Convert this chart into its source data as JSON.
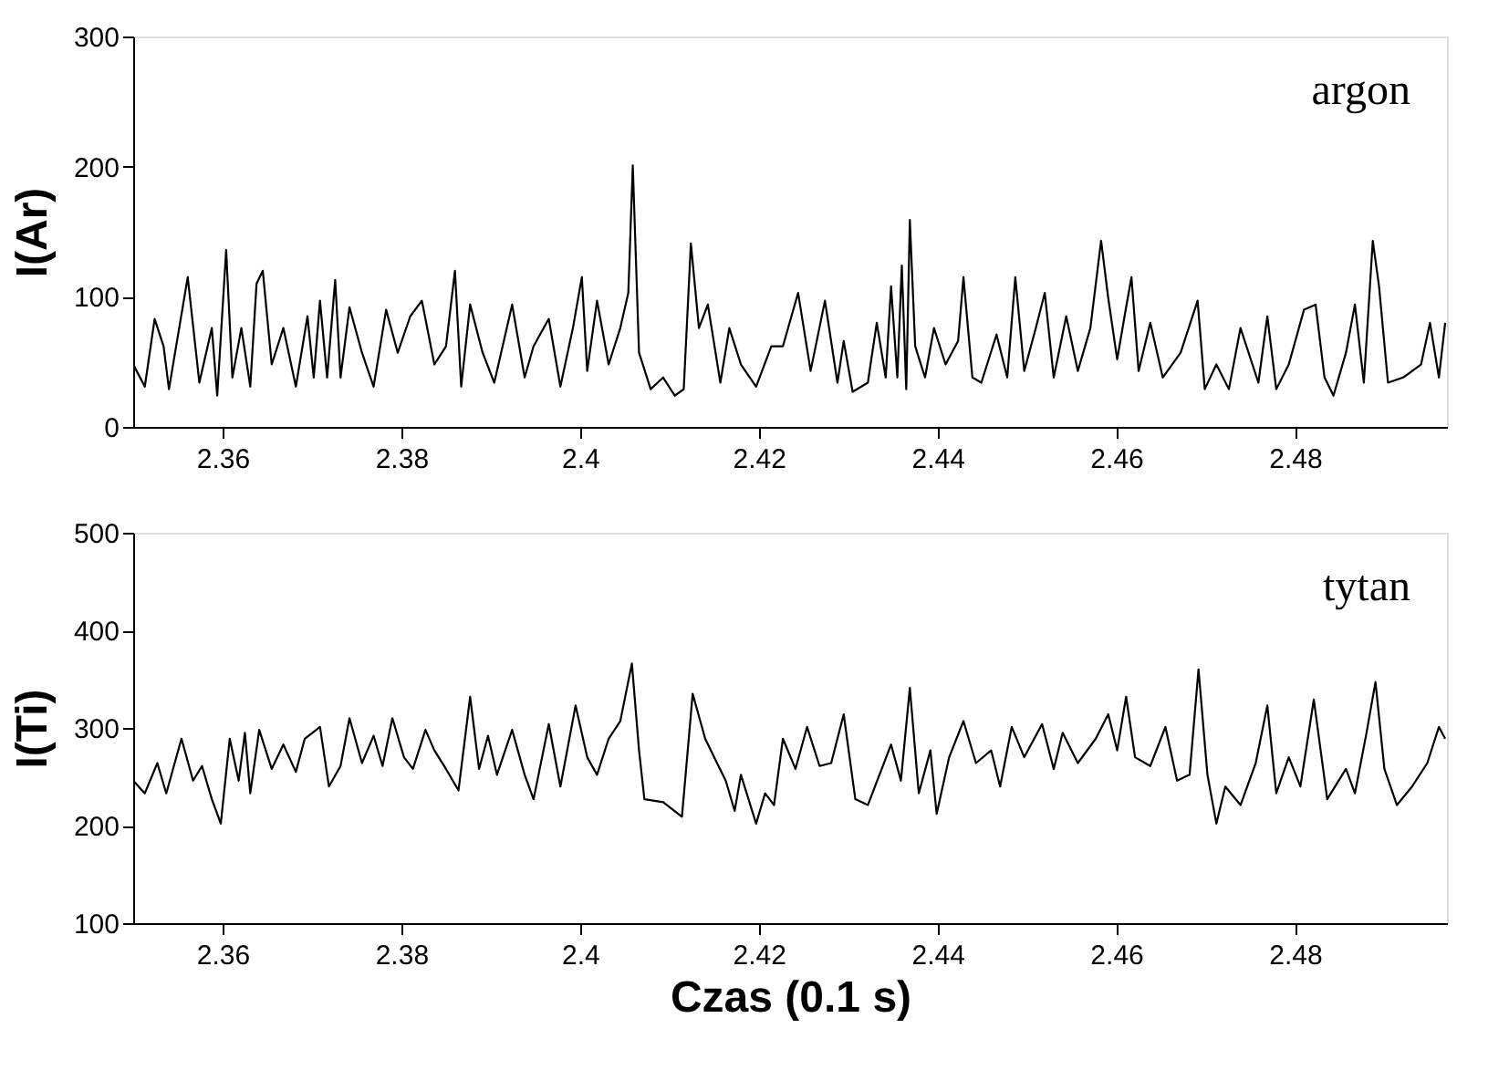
{
  "chart_data": [
    {
      "type": "line",
      "ylabel": "I(Ar)",
      "xlim": [
        2.35,
        2.497
      ],
      "xticks": [
        2.36,
        2.38,
        2.4,
        2.42,
        2.44,
        2.46,
        2.48
      ],
      "ylim": [
        0,
        300
      ],
      "yticks": [
        0,
        100,
        200,
        300
      ],
      "grid": false,
      "marker": "none",
      "line_style": "solid",
      "series": [
        {
          "name": "argon",
          "color": "#000000",
          "x": [
            2.35,
            2.3513,
            2.3524,
            2.3534,
            2.354,
            2.3561,
            2.3574,
            2.3588,
            2.3594,
            2.3604,
            2.3611,
            2.3621,
            2.3631,
            2.3638,
            2.3645,
            2.3655,
            2.3668,
            2.3682,
            2.3695,
            2.3702,
            2.3709,
            2.3717,
            2.3726,
            2.3732,
            2.3742,
            2.3756,
            2.3769,
            2.3783,
            2.3796,
            2.381,
            2.3823,
            2.3837,
            2.385,
            2.386,
            2.3867,
            2.3877,
            2.3891,
            2.3904,
            2.3924,
            2.3938,
            2.3948,
            2.3965,
            2.3978,
            2.3992,
            2.4002,
            2.4008,
            2.4019,
            2.4032,
            2.4045,
            2.4054,
            2.4059,
            2.4066,
            2.4079,
            2.4093,
            2.4106,
            2.4116,
            2.4124,
            2.4133,
            2.4143,
            2.4157,
            2.4167,
            2.418,
            2.4197,
            2.4214,
            2.4227,
            2.4244,
            2.4258,
            2.4274,
            2.4288,
            2.4295,
            2.4305,
            2.4322,
            2.4332,
            2.4342,
            2.4348,
            2.4355,
            2.436,
            2.4365,
            2.4369,
            2.4375,
            2.4386,
            2.4396,
            2.4409,
            2.4423,
            2.4429,
            2.4439,
            2.4449,
            2.4466,
            2.4478,
            2.4487,
            2.4497,
            2.451,
            2.452,
            2.453,
            2.4544,
            2.4557,
            2.4571,
            2.4583,
            2.4591,
            2.4601,
            2.4611,
            2.4617,
            2.4625,
            2.4638,
            2.4652,
            2.4672,
            2.4691,
            2.4699,
            2.4712,
            2.4726,
            2.4739,
            2.4759,
            2.4769,
            2.4779,
            2.4793,
            2.481,
            2.4823,
            2.4833,
            2.4843,
            2.4857,
            2.4867,
            2.4877,
            2.4887,
            2.4894,
            2.4904,
            2.4921,
            2.4941,
            2.4951,
            2.4961,
            2.4968
          ],
          "values": [
            48,
            31,
            83,
            62,
            29,
            115,
            34,
            76,
            24,
            136,
            38,
            76,
            31,
            110,
            120,
            48,
            76,
            31,
            85,
            38,
            97,
            38,
            113,
            38,
            92,
            57,
            31,
            90,
            57,
            85,
            97,
            48,
            62,
            120,
            31,
            94,
            57,
            34,
            94,
            38,
            62,
            83,
            31,
            76,
            115,
            43,
            97,
            48,
            76,
            103,
            201,
            57,
            29,
            38,
            24,
            29,
            141,
            76,
            94,
            34,
            76,
            48,
            31,
            62,
            62,
            103,
            43,
            97,
            34,
            66,
            27,
            34,
            80,
            38,
            108,
            38,
            124,
            29,
            159,
            62,
            38,
            76,
            48,
            66,
            115,
            38,
            34,
            71,
            38,
            115,
            43,
            76,
            103,
            38,
            85,
            43,
            76,
            143,
            99,
            52,
            92,
            115,
            43,
            80,
            38,
            57,
            97,
            29,
            48,
            29,
            76,
            34,
            85,
            29,
            48,
            90,
            94,
            38,
            24,
            57,
            94,
            34,
            143,
            108,
            34,
            38,
            48,
            80,
            38,
            80
          ]
        }
      ]
    },
    {
      "type": "line",
      "xlabel": "Czas (0.1 s)",
      "ylabel": "I(Ti)",
      "xlim": [
        2.35,
        2.497
      ],
      "xticks": [
        2.36,
        2.38,
        2.4,
        2.42,
        2.44,
        2.46,
        2.48
      ],
      "ylim": [
        100,
        500
      ],
      "yticks": [
        100,
        200,
        300,
        400,
        500
      ],
      "grid": false,
      "marker": "none",
      "line_style": "solid",
      "series": [
        {
          "name": "tytan",
          "color": "#000000",
          "x": [
            2.35,
            2.3513,
            2.3527,
            2.3537,
            2.3554,
            2.3567,
            2.3577,
            2.3588,
            2.3598,
            2.3608,
            2.3618,
            2.3625,
            2.3631,
            2.3641,
            2.3655,
            2.3668,
            2.3682,
            2.3692,
            2.3709,
            2.3719,
            2.3732,
            2.3742,
            2.3756,
            2.3769,
            2.3779,
            2.379,
            2.3803,
            2.3813,
            2.3827,
            2.3837,
            2.385,
            2.3864,
            2.3877,
            2.3887,
            2.3897,
            2.3907,
            2.3924,
            2.3938,
            2.3948,
            2.3965,
            2.3978,
            2.3995,
            2.4008,
            2.4019,
            2.4032,
            2.4045,
            2.4058,
            2.4066,
            2.4072,
            2.4093,
            2.4114,
            2.4126,
            2.414,
            2.415,
            2.4163,
            2.4173,
            2.418,
            2.4197,
            2.4207,
            2.4217,
            2.4227,
            2.4241,
            2.4254,
            2.4268,
            2.4281,
            2.4295,
            2.4308,
            2.4322,
            2.4335,
            2.4348,
            2.4359,
            2.4369,
            2.4379,
            2.4392,
            2.4399,
            2.4413,
            2.4429,
            2.4443,
            2.446,
            2.447,
            2.4483,
            2.4497,
            2.4517,
            2.453,
            2.454,
            2.4557,
            2.4577,
            2.4591,
            2.4601,
            2.4611,
            2.4621,
            2.4638,
            2.4655,
            2.4668,
            2.4682,
            2.4692,
            2.4702,
            2.4712,
            2.4722,
            2.4739,
            2.4756,
            2.4769,
            2.4779,
            2.4793,
            2.4806,
            2.4821,
            2.4836,
            2.4857,
            2.4867,
            2.488,
            2.489,
            2.49,
            2.4914,
            2.4931,
            2.4948,
            2.4961,
            2.4968
          ],
          "values": [
            246,
            233,
            264,
            233,
            289,
            246,
            261,
            227,
            202,
            289,
            246,
            295,
            233,
            298,
            258,
            283,
            255,
            289,
            301,
            240,
            261,
            310,
            264,
            292,
            261,
            310,
            270,
            258,
            298,
            277,
            258,
            236,
            332,
            258,
            292,
            252,
            298,
            252,
            227,
            304,
            240,
            323,
            270,
            252,
            289,
            307,
            366,
            277,
            227,
            224,
            209,
            335,
            289,
            270,
            246,
            215,
            252,
            202,
            233,
            221,
            289,
            258,
            301,
            261,
            264,
            314,
            227,
            221,
            252,
            283,
            246,
            341,
            233,
            277,
            212,
            270,
            307,
            264,
            277,
            240,
            301,
            270,
            304,
            258,
            295,
            264,
            289,
            314,
            277,
            332,
            270,
            261,
            301,
            246,
            252,
            360,
            252,
            202,
            240,
            221,
            264,
            323,
            233,
            270,
            240,
            329,
            227,
            258,
            233,
            295,
            347,
            258,
            221,
            240,
            264,
            301,
            289
          ]
        }
      ]
    }
  ]
}
